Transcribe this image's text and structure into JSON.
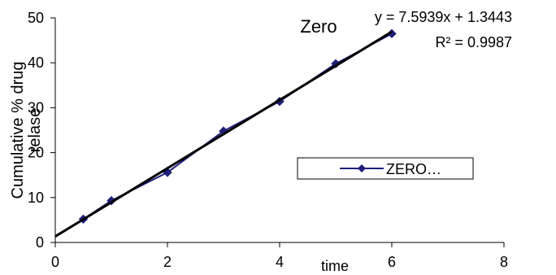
{
  "chart_data": {
    "type": "scatter",
    "title": "Zero",
    "xlabel": "time",
    "ylabel": "Cumulative % drug relase",
    "xlim": [
      0,
      8
    ],
    "ylim": [
      0,
      50
    ],
    "xticks": [
      "0",
      "2",
      "4",
      "6",
      "8"
    ],
    "yticks": [
      "0",
      "10",
      "20",
      "30",
      "40",
      "50"
    ],
    "grid": false,
    "legend_position": "right",
    "series": [
      {
        "name": "ZERO…",
        "x": [
          0.5,
          1,
          2,
          3,
          4,
          5,
          6
        ],
        "y": [
          5.2,
          9.3,
          15.6,
          24.8,
          31.4,
          39.8,
          46.5
        ],
        "color": "#1f1f7a",
        "marker": "diamond"
      }
    ],
    "trendline": {
      "slope": 7.5939,
      "intercept": 1.3443,
      "color": "#000000",
      "equation": "y = 7.5939x + 1.3443",
      "r_squared": "R² = 0.9987"
    }
  }
}
